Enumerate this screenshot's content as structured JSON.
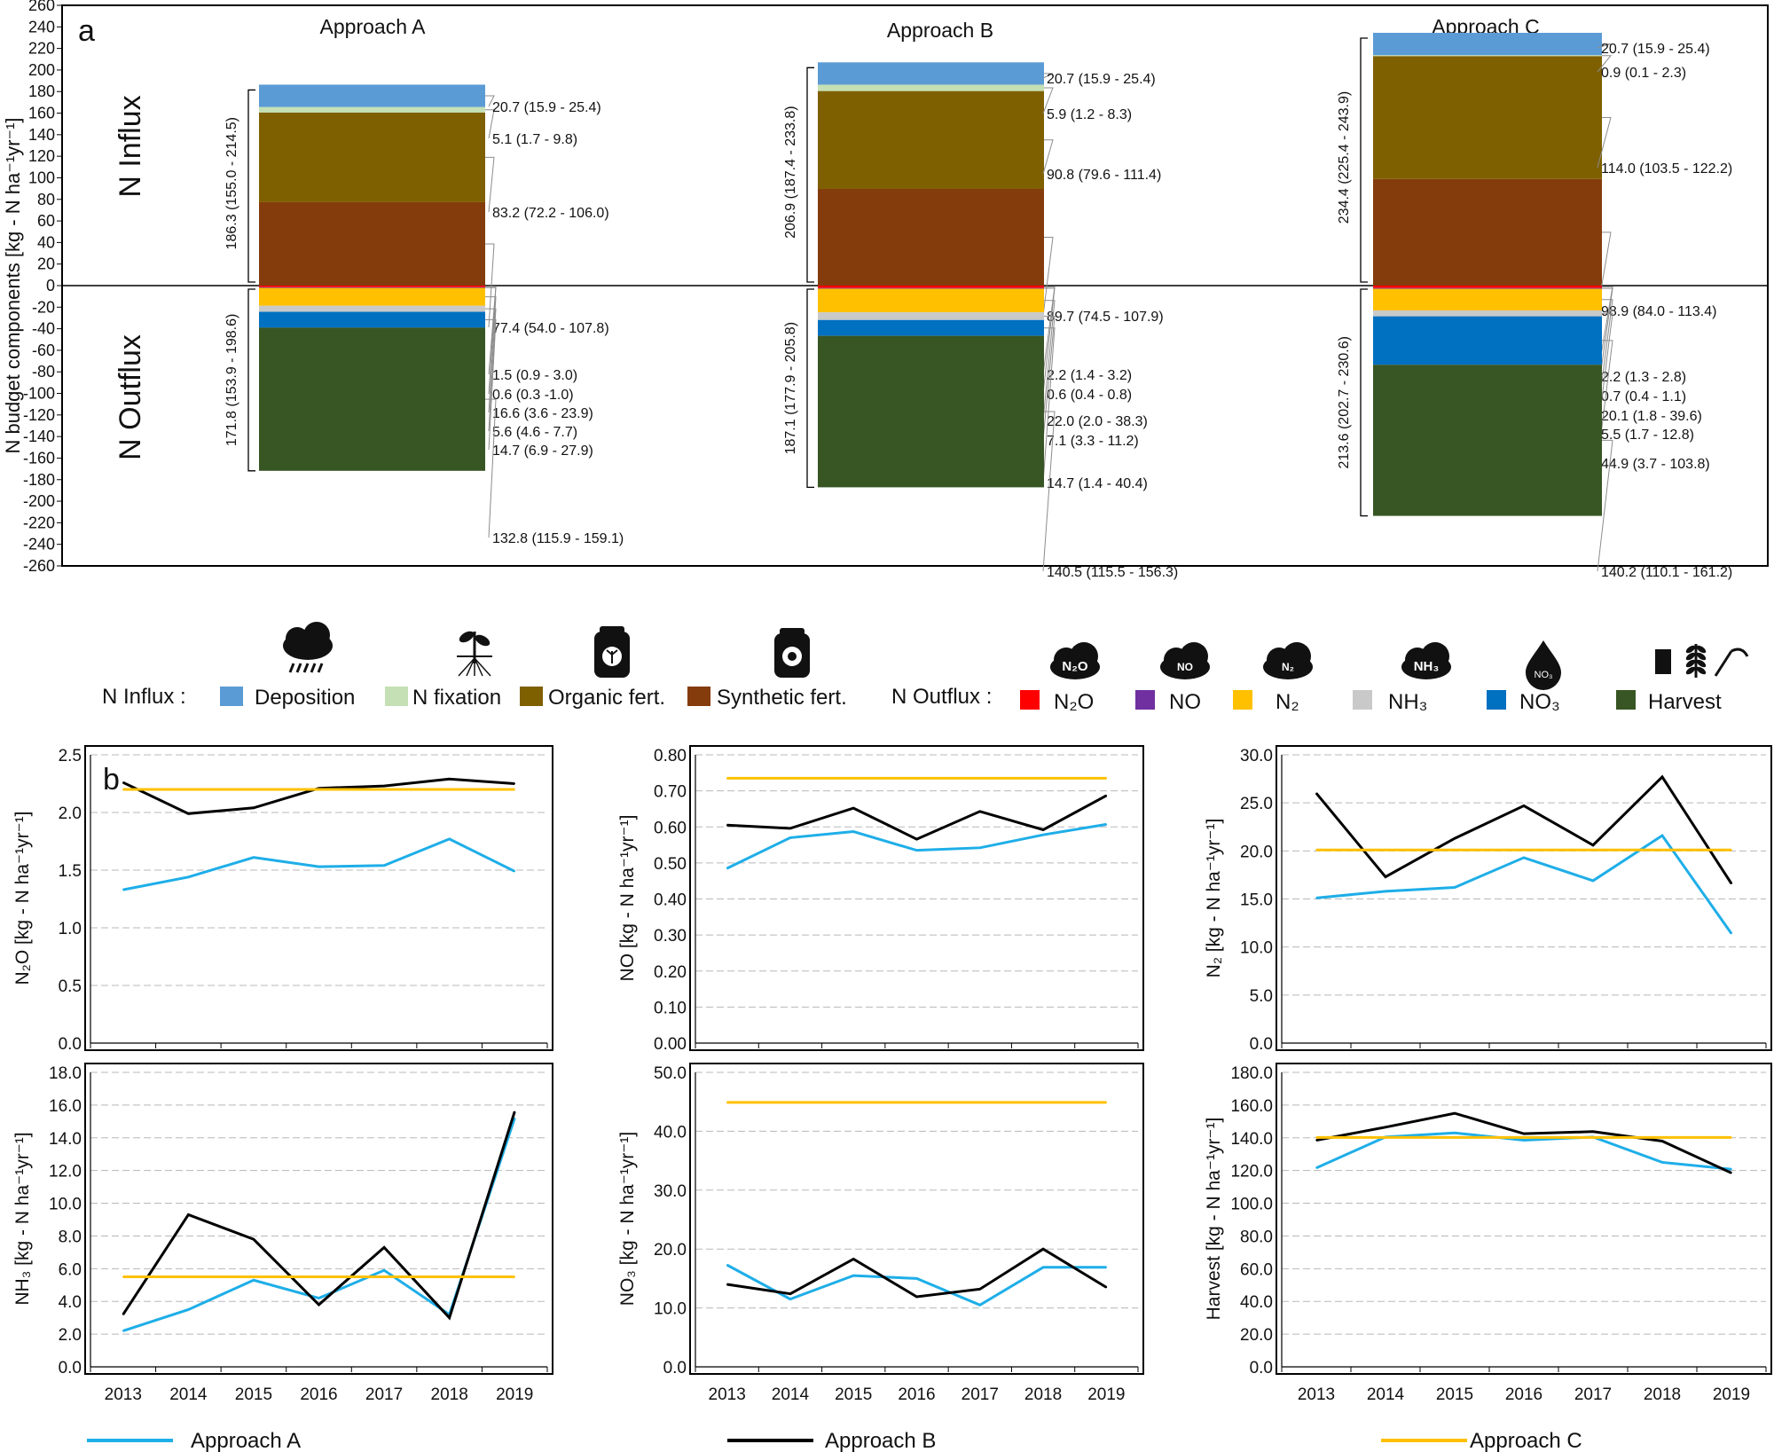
{
  "panel_a": {
    "letter": "a",
    "ylabel": "N budget components [kg - N ha⁻¹yr⁻¹]",
    "ylim": [
      -260,
      260
    ],
    "yticks": [
      "260",
      "240",
      "220",
      "200",
      "180",
      "160",
      "140",
      "120",
      "100",
      "80",
      "60",
      "40",
      "20",
      "0",
      "-20",
      "-40",
      "-60",
      "-80",
      "-100",
      "-120",
      "-140",
      "-160",
      "-180",
      "-200",
      "-220",
      "-240",
      "-260"
    ],
    "influx_label": "N Influx",
    "outflux_label": "N Outflux"
  },
  "legend": {
    "influx_title": "N Influx :",
    "outflux_title": "N Outflux :",
    "influx_items": [
      {
        "label": "Deposition",
        "color": "#5b9bd5",
        "icon": "rain-cloud-icon"
      },
      {
        "label": "N fixation",
        "color": "#c5e0b4",
        "icon": "plant-roots-icon"
      },
      {
        "label": "Organic fert.",
        "color": "#7f6000",
        "icon": "organic-fertilizer-bag-icon"
      },
      {
        "label": "Synthetic fert.",
        "color": "#843c0c",
        "icon": "synthetic-fertilizer-bag-icon"
      }
    ],
    "outflux_items": [
      {
        "label": "N₂O",
        "color": "#ff0000",
        "icon": "n2o-cloud-icon",
        "icon_text": "N₂O"
      },
      {
        "label": "NO",
        "color": "#7030a0",
        "icon": "no-cloud-icon",
        "icon_text": "NO"
      },
      {
        "label": "N₂",
        "color": "#ffc000",
        "icon": "n2-cloud-icon",
        "icon_text": "N₂"
      },
      {
        "label": "NH₃",
        "color": "#c9c9c9",
        "icon": "nh3-cloud-icon",
        "icon_text": "NH₃"
      },
      {
        "label": "NO₃",
        "color": "#0070c0",
        "icon": "no3-drop-icon",
        "icon_text": "NO₃"
      },
      {
        "label": "Harvest",
        "color": "#375623",
        "icon": "harvest-icon"
      }
    ]
  },
  "chart_data": [
    {
      "type": "bar",
      "stacked": true,
      "panel": "a",
      "ylabel": "N budget components [kg - N ha⁻¹yr⁻¹]",
      "ylim": [
        -260,
        260
      ],
      "categories": [
        "Approach A",
        "Approach B",
        "Approach C"
      ],
      "approaches": [
        {
          "name": "Approach A",
          "influx_total": "186.3 (155.0 - 214.5)",
          "outflux_total": "171.8 (153.9 - 198.6)",
          "influx": [
            {
              "component": "Synthetic fert.",
              "value": 77.4,
              "label": "77.4 (54.0 - 107.8)"
            },
            {
              "component": "Organic fert.",
              "value": 83.2,
              "label": "83.2 (72.2 - 106.0)"
            },
            {
              "component": "N fixation",
              "value": 5.1,
              "label": "5.1 (1.7 - 9.8)"
            },
            {
              "component": "Deposition",
              "value": 20.7,
              "label": "20.7 (15.9 - 25.4)"
            }
          ],
          "outflux": [
            {
              "component": "N₂O",
              "value": 1.5,
              "label": "1.5 (0.9 - 3.0)"
            },
            {
              "component": "NO",
              "value": 0.6,
              "label": "0.6 (0.3 -1.0)"
            },
            {
              "component": "N₂",
              "value": 16.6,
              "label": "16.6 (3.6 - 23.9)"
            },
            {
              "component": "NH₃",
              "value": 5.6,
              "label": "5.6 (4.6 - 7.7)"
            },
            {
              "component": "NO₃",
              "value": 14.7,
              "label": "14.7 (6.9 - 27.9)"
            },
            {
              "component": "Harvest",
              "value": 132.8,
              "label": "132.8 (115.9 - 159.1)"
            }
          ]
        },
        {
          "name": "Approach B",
          "influx_total": "206.9 (187.4 - 233.8)",
          "outflux_total": "187.1 (177.9 - 205.8)",
          "influx": [
            {
              "component": "Synthetic fert.",
              "value": 89.7,
              "label": "89.7 (74.5 - 107.9)"
            },
            {
              "component": "Organic fert.",
              "value": 90.8,
              "label": "90.8 (79.6 - 111.4)"
            },
            {
              "component": "N fixation",
              "value": 5.9,
              "label": "5.9 (1.2 - 8.3)"
            },
            {
              "component": "Deposition",
              "value": 20.7,
              "label": "20.7 (15.9 - 25.4)"
            }
          ],
          "outflux": [
            {
              "component": "N₂O",
              "value": 2.2,
              "label": "2.2 (1.4 - 3.2)"
            },
            {
              "component": "NO",
              "value": 0.6,
              "label": "0.6 (0.4 - 0.8)"
            },
            {
              "component": "N₂",
              "value": 22.0,
              "label": "22.0 (2.0 - 38.3)"
            },
            {
              "component": "NH₃",
              "value": 7.1,
              "label": "7.1 (3.3 - 11.2)"
            },
            {
              "component": "NO₃",
              "value": 14.7,
              "label": "14.7 (1.4 - 40.4)"
            },
            {
              "component": "Harvest",
              "value": 140.5,
              "label": "140.5 (115.5 - 156.3)"
            }
          ]
        },
        {
          "name": "Approach C",
          "influx_total": "234.4 (225.4 - 243.9)",
          "outflux_total": "213.6 (202.7 - 230.6)",
          "influx": [
            {
              "component": "Synthetic fert.",
              "value": 98.9,
              "label": "98.9 (84.0 - 113.4)"
            },
            {
              "component": "Organic fert.",
              "value": 114.0,
              "label": "114.0 (103.5 - 122.2)"
            },
            {
              "component": "N fixation",
              "value": 0.9,
              "label": "0.9 (0.1 - 2.3)"
            },
            {
              "component": "Deposition",
              "value": 20.7,
              "label": "20.7 (15.9 - 25.4)"
            }
          ],
          "outflux": [
            {
              "component": "N₂O",
              "value": 2.2,
              "label": "2.2 (1.3 - 2.8)"
            },
            {
              "component": "NO",
              "value": 0.7,
              "label": "0.7 (0.4 - 1.1)"
            },
            {
              "component": "N₂",
              "value": 20.1,
              "label": "20.1 (1.8 - 39.6)"
            },
            {
              "component": "NH₃",
              "value": 5.5,
              "label": "5.5 (1.7 - 12.8)"
            },
            {
              "component": "NO₃",
              "value": 44.9,
              "label": "44.9 (3.7 - 103.8)"
            },
            {
              "component": "Harvest",
              "value": 140.2,
              "label": "140.2 (110.1 - 161.2)"
            }
          ]
        }
      ]
    },
    {
      "type": "line",
      "panel": "b1",
      "letter": "b",
      "ylabel": "N₂O [kg - N ha⁻¹yr⁻¹]",
      "ylim": [
        0,
        2.5
      ],
      "yticks": [
        "0.0",
        "0.5",
        "1.0",
        "1.5",
        "2.0",
        "2.5"
      ],
      "ystep": 0.5,
      "x": [
        "2013",
        "2014",
        "2015",
        "2016",
        "2017",
        "2018",
        "2019"
      ],
      "series": [
        {
          "name": "Approach A",
          "values": [
            1.33,
            1.44,
            1.61,
            1.53,
            1.54,
            1.77,
            1.49
          ]
        },
        {
          "name": "Approach B",
          "values": [
            2.26,
            1.99,
            2.04,
            2.21,
            2.23,
            2.29,
            2.25
          ]
        },
        {
          "name": "Approach C",
          "values": [
            2.2,
            2.2,
            2.2,
            2.2,
            2.2,
            2.2,
            2.2
          ]
        }
      ]
    },
    {
      "type": "line",
      "panel": "b2",
      "ylabel": "NO [kg - N ha⁻¹yr⁻¹]",
      "ylim": [
        0,
        0.8
      ],
      "yticks": [
        "0.00",
        "0.10",
        "0.20",
        "0.30",
        "0.40",
        "0.50",
        "0.60",
        "0.70",
        "0.80"
      ],
      "ystep": 0.1,
      "x": [
        "2013",
        "2014",
        "2015",
        "2016",
        "2017",
        "2018",
        "2019"
      ],
      "series": [
        {
          "name": "Approach A",
          "values": [
            0.485,
            0.57,
            0.587,
            0.535,
            0.542,
            0.578,
            0.607
          ]
        },
        {
          "name": "Approach B",
          "values": [
            0.605,
            0.596,
            0.652,
            0.566,
            0.643,
            0.592,
            0.687
          ]
        },
        {
          "name": "Approach C",
          "values": [
            0.735,
            0.735,
            0.735,
            0.735,
            0.735,
            0.735,
            0.735
          ]
        }
      ]
    },
    {
      "type": "line",
      "panel": "b3",
      "ylabel": "N₂ [kg - N ha⁻¹yr⁻¹]",
      "ylim": [
        0,
        30
      ],
      "yticks": [
        "0.0",
        "5.0",
        "10.0",
        "15.0",
        "20.0",
        "25.0",
        "30.0"
      ],
      "ystep": 5,
      "x": [
        "2013",
        "2014",
        "2015",
        "2016",
        "2017",
        "2018",
        "2019"
      ],
      "series": [
        {
          "name": "Approach A",
          "values": [
            15.1,
            15.8,
            16.2,
            19.3,
            16.9,
            21.6,
            11.4
          ]
        },
        {
          "name": "Approach B",
          "values": [
            26.0,
            17.3,
            21.3,
            24.7,
            20.6,
            27.7,
            16.6
          ]
        },
        {
          "name": "Approach C",
          "values": [
            20.1,
            20.1,
            20.1,
            20.1,
            20.1,
            20.1,
            20.1
          ]
        }
      ]
    },
    {
      "type": "line",
      "panel": "b4",
      "ylabel": "NH₃ [kg - N ha⁻¹yr⁻¹]",
      "ylim": [
        0,
        18
      ],
      "yticks": [
        "0.0",
        "2.0",
        "4.0",
        "6.0",
        "8.0",
        "10.0",
        "12.0",
        "14.0",
        "16.0",
        "18.0"
      ],
      "ystep": 2,
      "x": [
        "2013",
        "2014",
        "2015",
        "2016",
        "2017",
        "2018",
        "2019"
      ],
      "series": [
        {
          "name": "Approach A",
          "values": [
            2.2,
            3.5,
            5.3,
            4.2,
            5.9,
            3.2,
            15.2
          ]
        },
        {
          "name": "Approach B",
          "values": [
            3.2,
            9.3,
            7.8,
            3.8,
            7.3,
            3.0,
            15.6
          ]
        },
        {
          "name": "Approach C",
          "values": [
            5.5,
            5.5,
            5.5,
            5.5,
            5.5,
            5.5,
            5.5
          ]
        }
      ]
    },
    {
      "type": "line",
      "panel": "b5",
      "ylabel": "NO₃ [kg - N ha⁻¹yr⁻¹]",
      "ylim": [
        0,
        50
      ],
      "yticks": [
        "0.0",
        "10.0",
        "20.0",
        "30.0",
        "40.0",
        "50.0"
      ],
      "ystep": 10,
      "x": [
        "2013",
        "2014",
        "2015",
        "2016",
        "2017",
        "2018",
        "2019"
      ],
      "series": [
        {
          "name": "Approach A",
          "values": [
            17.3,
            11.5,
            15.5,
            15.0,
            10.5,
            16.9,
            16.9
          ]
        },
        {
          "name": "Approach B",
          "values": [
            14.0,
            12.4,
            18.3,
            11.9,
            13.2,
            20.0,
            13.5
          ]
        },
        {
          "name": "Approach C",
          "values": [
            44.9,
            44.9,
            44.9,
            44.9,
            44.9,
            44.9,
            44.9
          ]
        }
      ]
    },
    {
      "type": "line",
      "panel": "b6",
      "ylabel": "Harvest [kg - N ha⁻¹yr⁻¹]",
      "ylim": [
        0,
        180
      ],
      "yticks": [
        "0.0",
        "20.0",
        "40.0",
        "60.0",
        "80.0",
        "100.0",
        "120.0",
        "140.0",
        "160.0",
        "180.0"
      ],
      "ystep": 20,
      "x": [
        "2013",
        "2014",
        "2015",
        "2016",
        "2017",
        "2018",
        "2019"
      ],
      "series": [
        {
          "name": "Approach A",
          "values": [
            121.6,
            140.5,
            143.0,
            138.5,
            140.5,
            125.0,
            120.8
          ]
        },
        {
          "name": "Approach B",
          "values": [
            138.5,
            146.5,
            155.0,
            142.5,
            143.8,
            138.0,
            118.5
          ]
        },
        {
          "name": "Approach C",
          "values": [
            140.2,
            140.2,
            140.2,
            140.2,
            140.2,
            140.2,
            140.2
          ]
        }
      ]
    }
  ],
  "series_legend": [
    {
      "name": "Approach A",
      "color": "#1eaee8"
    },
    {
      "name": "Approach B",
      "color": "#000000"
    },
    {
      "name": "Approach C",
      "color": "#ffc000"
    }
  ]
}
